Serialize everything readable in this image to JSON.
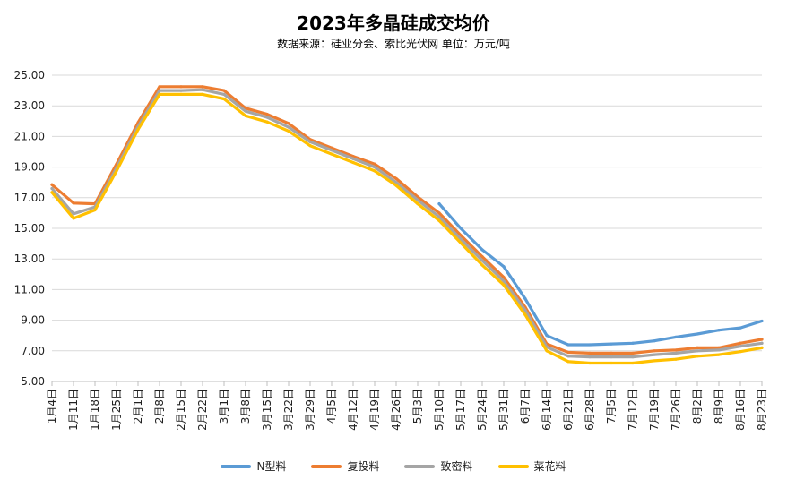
{
  "chart_data": {
    "type": "line",
    "title": "2023年多晶硅成交均价",
    "subtitle": "数据来源：硅业分会、索比光伏网      单位：万元/吨",
    "ylim": [
      5,
      25
    ],
    "yticks": [
      "25.00",
      "23.00",
      "21.00",
      "19.00",
      "17.00",
      "15.00",
      "13.00",
      "11.00",
      "9.00",
      "7.00",
      "5.00"
    ],
    "grid": true,
    "legend_position": "bottom",
    "categories": [
      "1月4日",
      "1月11日",
      "1月18日",
      "1月25日",
      "2月1日",
      "2月8日",
      "2月15日",
      "2月22日",
      "3月1日",
      "3月8日",
      "3月15日",
      "3月22日",
      "3月29日",
      "4月5日",
      "4月12日",
      "4月19日",
      "4月26日",
      "5月3日",
      "5月10日",
      "5月17日",
      "5月24日",
      "5月31日",
      "6月7日",
      "6月14日",
      "6月21日",
      "6月28日",
      "7月5日",
      "7月12日",
      "7月19日",
      "7月26日",
      "8月2日",
      "8月9日",
      "8月16日",
      "8月23日"
    ],
    "series": [
      {
        "name": "N型料",
        "color": "#5B9BD5",
        "values": [
          null,
          null,
          null,
          null,
          null,
          null,
          null,
          null,
          null,
          null,
          null,
          null,
          null,
          null,
          null,
          null,
          null,
          null,
          16.6,
          15.0,
          13.6,
          12.5,
          10.4,
          8.0,
          7.4,
          7.4,
          7.45,
          7.5,
          7.65,
          7.9,
          8.1,
          8.35,
          8.5,
          8.95
        ]
      },
      {
        "name": "复投料",
        "color": "#ED7D31",
        "values": [
          17.85,
          16.65,
          16.6,
          19.2,
          21.9,
          24.25,
          24.25,
          24.25,
          24.0,
          22.85,
          22.45,
          21.85,
          20.8,
          20.25,
          19.7,
          19.2,
          18.25,
          17.05,
          16.0,
          14.55,
          13.15,
          11.8,
          9.85,
          7.45,
          6.9,
          6.85,
          6.85,
          6.85,
          7.0,
          7.05,
          7.2,
          7.2,
          7.5,
          7.75
        ]
      },
      {
        "name": "致密料",
        "color": "#A5A5A5",
        "values": [
          17.6,
          15.95,
          16.4,
          18.95,
          21.65,
          24.0,
          24.0,
          24.05,
          23.75,
          22.65,
          22.25,
          21.6,
          20.65,
          20.1,
          19.55,
          19.0,
          18.0,
          16.85,
          15.75,
          14.3,
          12.9,
          11.55,
          9.65,
          7.25,
          6.65,
          6.6,
          6.6,
          6.6,
          6.75,
          6.85,
          7.0,
          7.05,
          7.3,
          7.5
        ]
      },
      {
        "name": "菜花料",
        "color": "#FFC000",
        "values": [
          17.35,
          15.65,
          16.2,
          18.75,
          21.45,
          23.75,
          23.75,
          23.75,
          23.45,
          22.35,
          21.95,
          21.35,
          20.4,
          19.85,
          19.3,
          18.75,
          17.8,
          16.6,
          15.5,
          14.05,
          12.6,
          11.3,
          9.35,
          7.0,
          6.3,
          6.2,
          6.2,
          6.2,
          6.35,
          6.45,
          6.65,
          6.75,
          6.95,
          7.2
        ]
      }
    ]
  }
}
